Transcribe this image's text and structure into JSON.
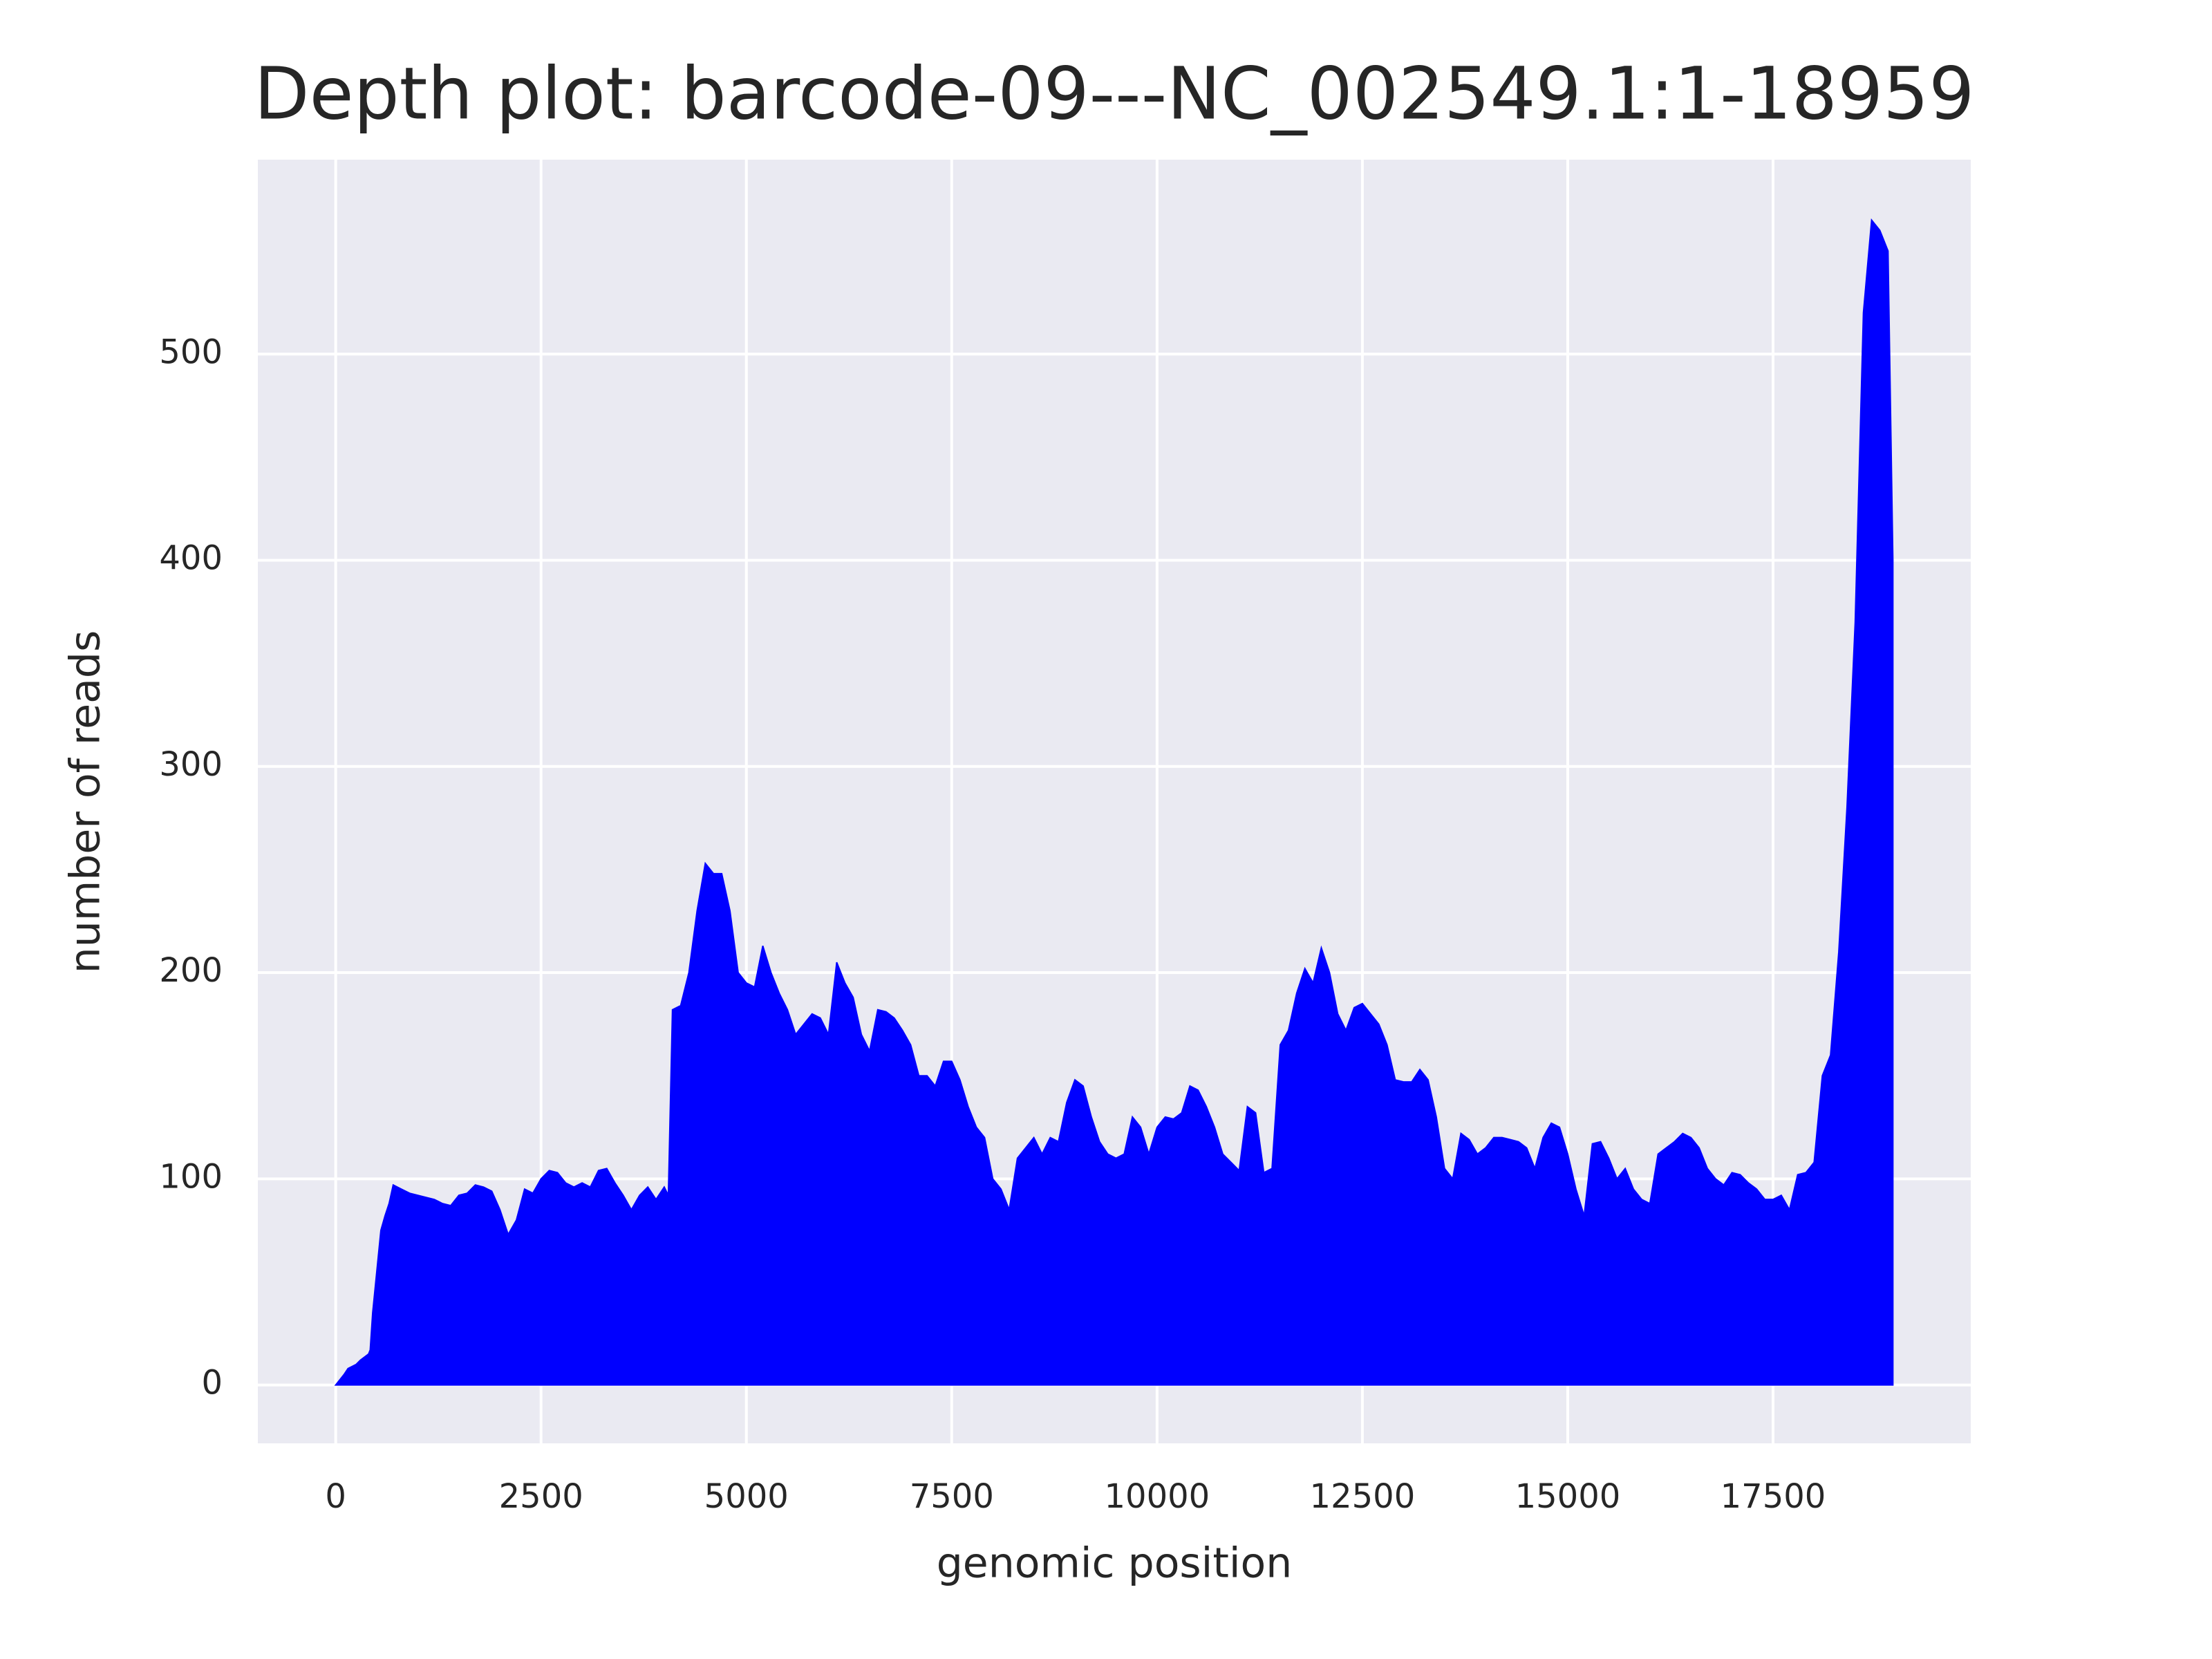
{
  "chart_data": {
    "type": "area",
    "title": "Depth plot: barcode-09---NC_002549.1:1-18959",
    "x_label": "genomic position",
    "y_label": "number of reads",
    "color": "#0000ff",
    "grid": true,
    "xlim": [
      -948,
      19907
    ],
    "ylim": [
      -28.3,
      594.3
    ],
    "xticks": [
      0,
      2500,
      5000,
      7500,
      10000,
      12500,
      15000,
      17500
    ],
    "yticks": [
      0,
      100,
      200,
      300,
      400,
      500
    ],
    "x": [
      0,
      100,
      150,
      250,
      300,
      400,
      420,
      450,
      500,
      550,
      600,
      650,
      700,
      800,
      900,
      1000,
      1100,
      1200,
      1300,
      1400,
      1500,
      1600,
      1700,
      1800,
      1900,
      2000,
      2100,
      2200,
      2300,
      2400,
      2500,
      2600,
      2700,
      2800,
      2900,
      3000,
      3100,
      3200,
      3300,
      3400,
      3500,
      3600,
      3700,
      3800,
      3900,
      4000,
      4050,
      4100,
      4200,
      4300,
      4400,
      4500,
      4600,
      4700,
      4800,
      4900,
      5000,
      5100,
      5200,
      5300,
      5400,
      5500,
      5600,
      5700,
      5800,
      5900,
      6000,
      6100,
      6200,
      6300,
      6400,
      6500,
      6600,
      6700,
      6800,
      6900,
      7000,
      7100,
      7200,
      7300,
      7400,
      7500,
      7600,
      7700,
      7800,
      7900,
      8000,
      8100,
      8200,
      8300,
      8400,
      8500,
      8600,
      8700,
      8800,
      8900,
      9000,
      9100,
      9200,
      9300,
      9400,
      9500,
      9600,
      9700,
      9800,
      9900,
      10000,
      10100,
      10200,
      10300,
      10400,
      10500,
      10600,
      10700,
      10800,
      10900,
      11000,
      11100,
      11200,
      11300,
      11400,
      11500,
      11600,
      11700,
      11800,
      11900,
      12000,
      12100,
      12200,
      12300,
      12400,
      12500,
      12600,
      12700,
      12800,
      12900,
      13000,
      13100,
      13200,
      13300,
      13400,
      13500,
      13600,
      13700,
      13800,
      13900,
      14000,
      14100,
      14200,
      14300,
      14400,
      14500,
      14600,
      14700,
      14800,
      14900,
      15000,
      15100,
      15200,
      15300,
      15400,
      15500,
      15600,
      15700,
      15800,
      15900,
      16000,
      16100,
      16200,
      16300,
      16400,
      16500,
      16600,
      16700,
      16800,
      16900,
      17000,
      17100,
      17200,
      17300,
      17400,
      17500,
      17600,
      17700,
      17800,
      17900,
      18000,
      18100,
      18200,
      18300,
      18400,
      18500,
      18600,
      18700,
      18800,
      18900,
      18959
    ],
    "values": [
      0,
      5,
      8,
      10,
      12,
      15,
      17,
      35,
      55,
      75,
      82,
      88,
      97,
      95,
      93,
      92,
      91,
      90,
      88,
      87,
      92,
      93,
      97,
      96,
      94,
      85,
      73,
      80,
      95,
      93,
      100,
      104,
      103,
      98,
      96,
      98,
      96,
      104,
      105,
      98,
      92,
      85,
      92,
      96,
      90,
      96,
      92,
      182,
      184,
      200,
      230,
      253,
      248,
      248,
      230,
      200,
      195,
      193,
      213,
      200,
      190,
      182,
      170,
      175,
      180,
      178,
      170,
      205,
      195,
      188,
      170,
      162,
      182,
      181,
      178,
      172,
      165,
      150,
      150,
      145,
      157,
      157,
      148,
      135,
      125,
      120,
      100,
      95,
      85,
      110,
      115,
      120,
      112,
      120,
      118,
      137,
      148,
      145,
      130,
      118,
      112,
      110,
      112,
      130,
      125,
      112,
      125,
      130,
      129,
      132,
      145,
      143,
      135,
      125,
      112,
      108,
      104,
      135,
      132,
      103,
      105,
      165,
      172,
      190,
      202,
      195,
      212,
      200,
      180,
      172,
      183,
      185,
      180,
      175,
      165,
      148,
      147,
      147,
      153,
      148,
      130,
      105,
      100,
      122,
      119,
      112,
      115,
      120,
      120,
      119,
      118,
      115,
      105,
      120,
      127,
      125,
      112,
      95,
      82,
      117,
      118,
      110,
      100,
      105,
      95,
      90,
      88,
      112,
      115,
      118,
      122,
      120,
      115,
      105,
      100,
      97,
      103,
      102,
      98,
      95,
      90,
      90,
      92,
      85,
      102,
      103,
      108,
      150,
      160,
      210,
      280,
      370,
      520,
      565,
      560,
      550,
      400
    ]
  }
}
